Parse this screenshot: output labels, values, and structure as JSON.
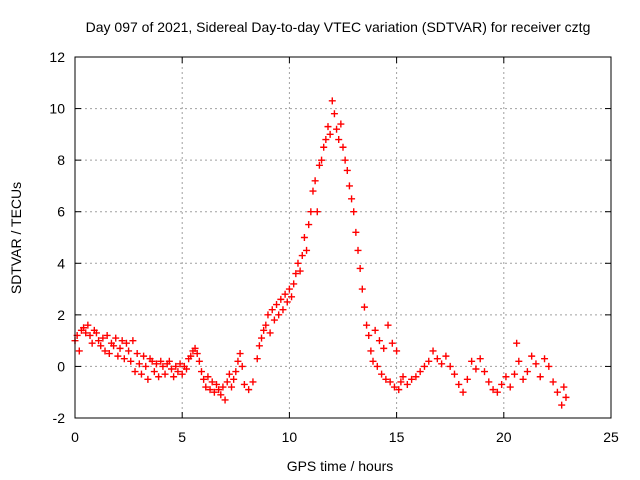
{
  "chart_data": {
    "type": "scatter",
    "title": "Day 097 of 2021, Sidereal Day-to-day VTEC variation (SDTVAR) for receiver cztg",
    "xlabel": "GPS time / hours",
    "ylabel": "SDTVAR / TECUs",
    "xlim": [
      0,
      25
    ],
    "ylim": [
      -2,
      12
    ],
    "xticks": [
      0,
      5,
      10,
      15,
      20,
      25
    ],
    "yticks": [
      -2,
      0,
      2,
      4,
      6,
      8,
      10,
      12
    ],
    "grid": true,
    "marker": "plus",
    "color": "#ff0000",
    "series": [
      {
        "name": "SDTVAR",
        "points": [
          [
            0.0,
            1.0
          ],
          [
            0.1,
            1.2
          ],
          [
            0.2,
            0.6
          ],
          [
            0.3,
            1.4
          ],
          [
            0.4,
            1.5
          ],
          [
            0.5,
            1.3
          ],
          [
            0.6,
            1.6
          ],
          [
            0.7,
            1.2
          ],
          [
            0.8,
            0.9
          ],
          [
            0.9,
            1.4
          ],
          [
            1.0,
            1.3
          ],
          [
            1.1,
            1.0
          ],
          [
            1.2,
            0.8
          ],
          [
            1.3,
            1.1
          ],
          [
            1.4,
            0.6
          ],
          [
            1.5,
            1.2
          ],
          [
            1.6,
            0.5
          ],
          [
            1.7,
            0.9
          ],
          [
            1.8,
            0.8
          ],
          [
            1.9,
            1.1
          ],
          [
            2.0,
            0.4
          ],
          [
            2.1,
            0.7
          ],
          [
            2.2,
            1.0
          ],
          [
            2.3,
            0.3
          ],
          [
            2.4,
            0.9
          ],
          [
            2.5,
            0.6
          ],
          [
            2.6,
            0.2
          ],
          [
            2.7,
            1.0
          ],
          [
            2.8,
            -0.2
          ],
          [
            2.9,
            0.5
          ],
          [
            3.0,
            0.1
          ],
          [
            3.1,
            -0.3
          ],
          [
            3.2,
            0.4
          ],
          [
            3.3,
            0.0
          ],
          [
            3.4,
            -0.5
          ],
          [
            3.5,
            0.3
          ],
          [
            3.6,
            0.2
          ],
          [
            3.7,
            -0.2
          ],
          [
            3.8,
            0.1
          ],
          [
            3.9,
            -0.4
          ],
          [
            4.0,
            0.2
          ],
          [
            4.1,
            0.0
          ],
          [
            4.2,
            -0.3
          ],
          [
            4.3,
            0.1
          ],
          [
            4.4,
            0.2
          ],
          [
            4.5,
            -0.1
          ],
          [
            4.6,
            -0.4
          ],
          [
            4.7,
            0.0
          ],
          [
            4.8,
            -0.2
          ],
          [
            4.9,
            0.1
          ],
          [
            5.0,
            -0.3
          ],
          [
            5.1,
            0.0
          ],
          [
            5.2,
            -0.1
          ],
          [
            5.3,
            0.3
          ],
          [
            5.4,
            0.4
          ],
          [
            5.5,
            0.6
          ],
          [
            5.6,
            0.7
          ],
          [
            5.7,
            0.5
          ],
          [
            5.8,
            0.2
          ],
          [
            5.9,
            -0.2
          ],
          [
            6.0,
            -0.5
          ],
          [
            6.1,
            -0.8
          ],
          [
            6.2,
            -0.4
          ],
          [
            6.3,
            -0.9
          ],
          [
            6.4,
            -0.6
          ],
          [
            6.5,
            -1.0
          ],
          [
            6.6,
            -0.7
          ],
          [
            6.7,
            -0.9
          ],
          [
            6.8,
            -1.1
          ],
          [
            6.9,
            -0.8
          ],
          [
            7.0,
            -1.3
          ],
          [
            7.1,
            -0.6
          ],
          [
            7.2,
            -0.3
          ],
          [
            7.3,
            -0.8
          ],
          [
            7.4,
            -0.5
          ],
          [
            7.5,
            -0.2
          ],
          [
            7.6,
            0.2
          ],
          [
            7.7,
            0.5
          ],
          [
            7.8,
            0.0
          ],
          [
            7.9,
            -0.7
          ],
          [
            8.1,
            -0.9
          ],
          [
            8.3,
            -0.6
          ],
          [
            8.5,
            0.3
          ],
          [
            8.6,
            0.8
          ],
          [
            8.7,
            1.1
          ],
          [
            8.8,
            1.4
          ],
          [
            8.9,
            1.6
          ],
          [
            9.0,
            2.0
          ],
          [
            9.1,
            1.3
          ],
          [
            9.2,
            2.2
          ],
          [
            9.3,
            1.8
          ],
          [
            9.4,
            2.4
          ],
          [
            9.5,
            2.0
          ],
          [
            9.6,
            2.6
          ],
          [
            9.7,
            2.2
          ],
          [
            9.8,
            2.8
          ],
          [
            9.9,
            2.5
          ],
          [
            10.0,
            3.0
          ],
          [
            10.1,
            2.7
          ],
          [
            10.2,
            3.2
          ],
          [
            10.3,
            3.6
          ],
          [
            10.4,
            4.0
          ],
          [
            10.5,
            3.7
          ],
          [
            10.6,
            4.3
          ],
          [
            10.7,
            5.0
          ],
          [
            10.8,
            4.5
          ],
          [
            10.9,
            5.5
          ],
          [
            11.0,
            6.0
          ],
          [
            11.1,
            6.8
          ],
          [
            11.2,
            7.2
          ],
          [
            11.3,
            6.0
          ],
          [
            11.4,
            7.8
          ],
          [
            11.5,
            8.0
          ],
          [
            11.6,
            8.5
          ],
          [
            11.7,
            8.8
          ],
          [
            11.8,
            9.3
          ],
          [
            11.9,
            9.0
          ],
          [
            12.0,
            10.3
          ],
          [
            12.1,
            9.8
          ],
          [
            12.2,
            9.2
          ],
          [
            12.3,
            8.8
          ],
          [
            12.4,
            9.4
          ],
          [
            12.5,
            8.5
          ],
          [
            12.6,
            8.0
          ],
          [
            12.7,
            7.6
          ],
          [
            12.8,
            7.0
          ],
          [
            12.9,
            6.5
          ],
          [
            13.0,
            6.0
          ],
          [
            13.1,
            5.2
          ],
          [
            13.2,
            4.5
          ],
          [
            13.3,
            3.8
          ],
          [
            13.4,
            3.0
          ],
          [
            13.5,
            2.3
          ],
          [
            13.6,
            1.6
          ],
          [
            13.7,
            1.2
          ],
          [
            13.8,
            0.6
          ],
          [
            13.9,
            0.2
          ],
          [
            14.0,
            1.4
          ],
          [
            14.1,
            0.0
          ],
          [
            14.2,
            1.0
          ],
          [
            14.3,
            -0.3
          ],
          [
            14.4,
            0.7
          ],
          [
            14.5,
            -0.5
          ],
          [
            14.6,
            1.6
          ],
          [
            14.7,
            -0.6
          ],
          [
            14.8,
            0.9
          ],
          [
            14.9,
            -0.8
          ],
          [
            15.0,
            0.6
          ],
          [
            15.1,
            -0.9
          ],
          [
            15.2,
            -0.6
          ],
          [
            15.3,
            -0.4
          ],
          [
            15.5,
            -0.7
          ],
          [
            15.7,
            -0.5
          ],
          [
            15.9,
            -0.4
          ],
          [
            16.1,
            -0.2
          ],
          [
            16.3,
            0.0
          ],
          [
            16.5,
            0.2
          ],
          [
            16.7,
            0.6
          ],
          [
            16.9,
            0.3
          ],
          [
            17.1,
            0.1
          ],
          [
            17.3,
            0.4
          ],
          [
            17.5,
            0.0
          ],
          [
            17.7,
            -0.3
          ],
          [
            17.9,
            -0.7
          ],
          [
            18.1,
            -1.0
          ],
          [
            18.3,
            -0.5
          ],
          [
            18.5,
            0.2
          ],
          [
            18.7,
            -0.1
          ],
          [
            18.9,
            0.3
          ],
          [
            19.1,
            -0.2
          ],
          [
            19.3,
            -0.6
          ],
          [
            19.5,
            -0.9
          ],
          [
            19.7,
            -1.0
          ],
          [
            19.9,
            -0.7
          ],
          [
            20.1,
            -0.4
          ],
          [
            20.3,
            -0.8
          ],
          [
            20.5,
            -0.3
          ],
          [
            20.6,
            0.9
          ],
          [
            20.7,
            0.2
          ],
          [
            20.9,
            -0.5
          ],
          [
            21.1,
            -0.2
          ],
          [
            21.3,
            0.4
          ],
          [
            21.5,
            0.1
          ],
          [
            21.7,
            -0.4
          ],
          [
            21.9,
            0.3
          ],
          [
            22.1,
            0.0
          ],
          [
            22.3,
            -0.6
          ],
          [
            22.5,
            -1.0
          ],
          [
            22.7,
            -1.5
          ],
          [
            22.8,
            -0.8
          ],
          [
            22.9,
            -1.2
          ]
        ]
      }
    ]
  }
}
